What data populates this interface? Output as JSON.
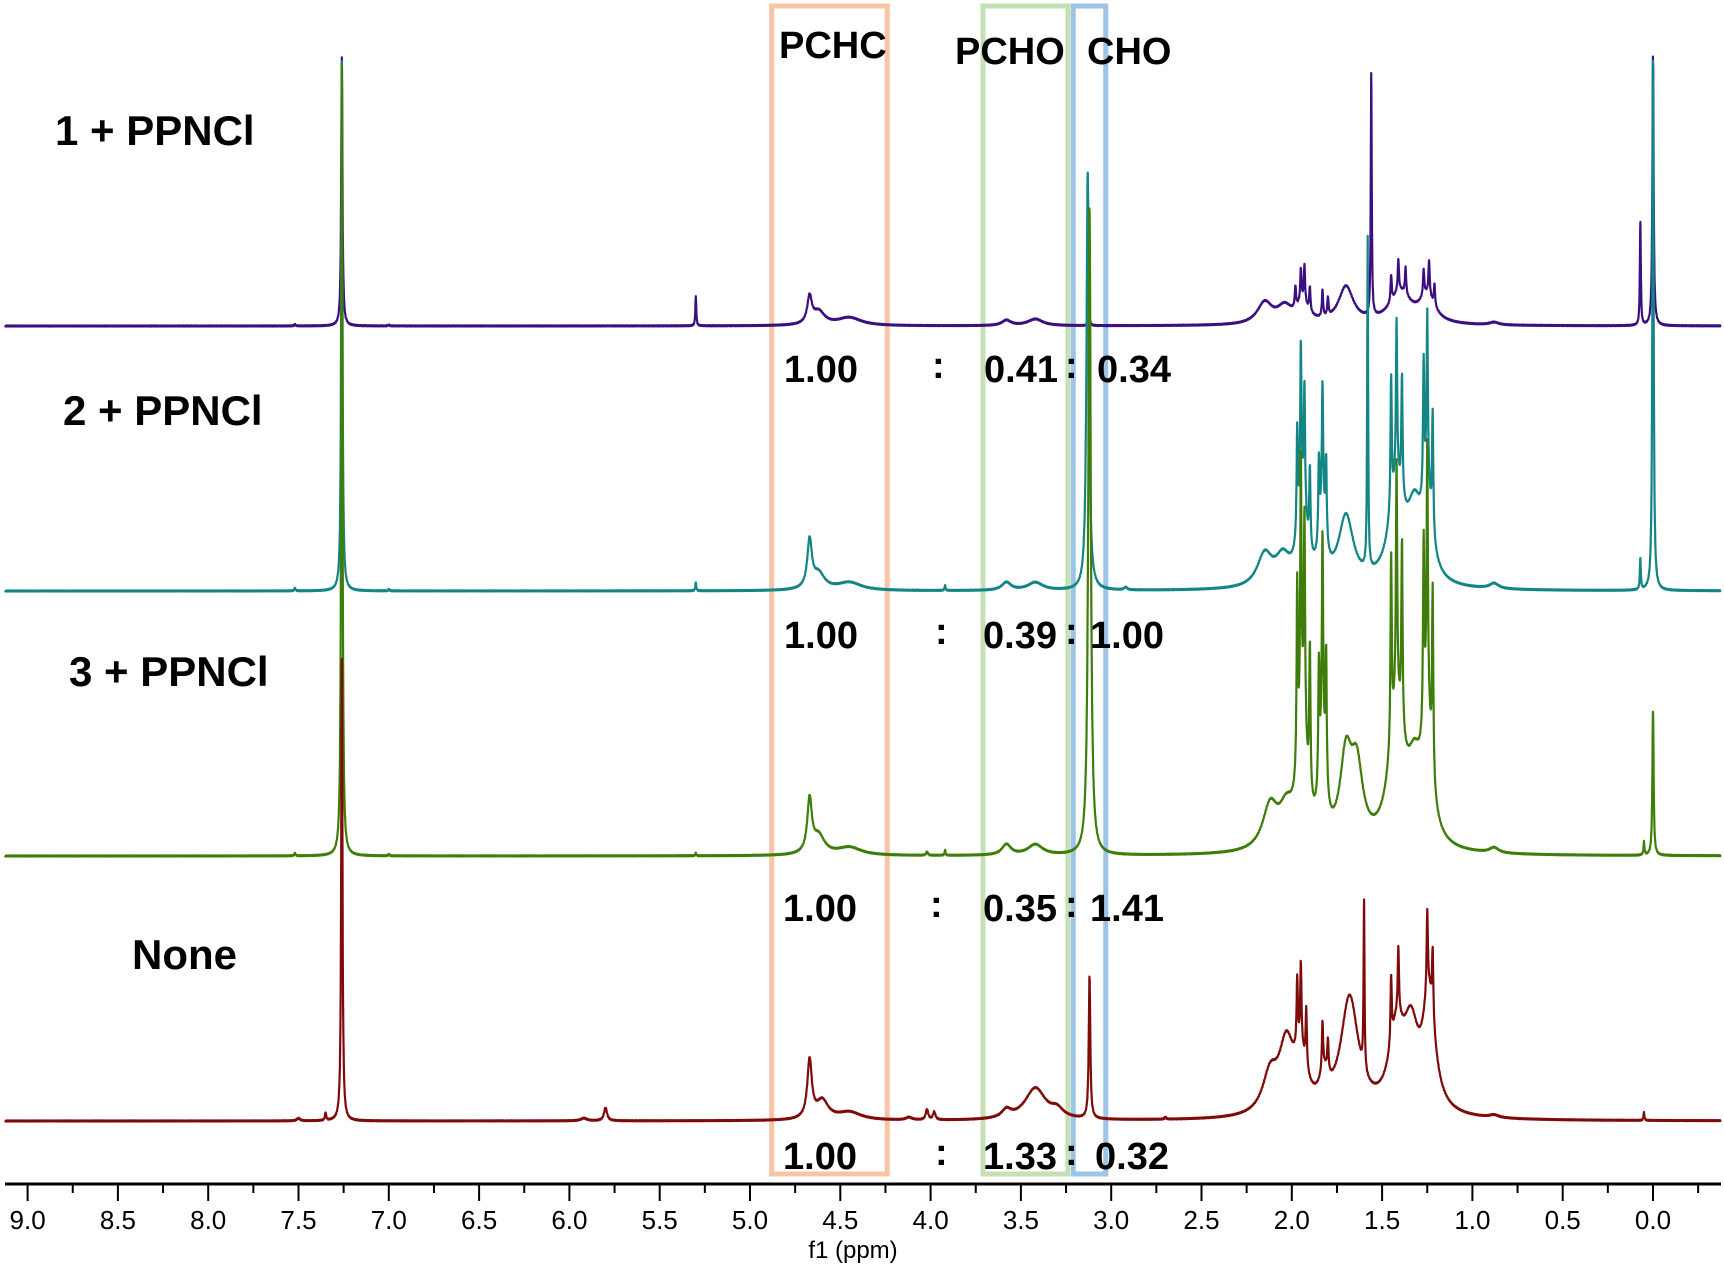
{
  "chart_data": {
    "type": "line",
    "xlabel": "f1 (ppm)",
    "xlim": [
      9.125,
      -0.377
    ],
    "x_reversed": true,
    "grid": false,
    "x_ticks": [
      "9.0",
      "8.5",
      "8.0",
      "7.5",
      "7.0",
      "6.5",
      "6.0",
      "5.5",
      "5.0",
      "4.5",
      "4.0",
      "3.5",
      "3.0",
      "2.5",
      "2.0",
      "1.5",
      "1.0",
      "0.5",
      "0.0"
    ],
    "regions": [
      {
        "label": "PCHC",
        "range_ppm": [
          4.88,
          4.24
        ],
        "color": "#f7c4a5"
      },
      {
        "label": "PCHO",
        "range_ppm": [
          3.71,
          3.24
        ],
        "color": "#c5e0b4"
      },
      {
        "label": "CHO",
        "range_ppm": [
          3.21,
          3.03
        ],
        "color": "#9dc3e6"
      }
    ],
    "integral_separator": ":",
    "spectra": [
      {
        "name": "1 + PPNCl",
        "color": "#3b0f80",
        "integrals": [
          "1.00",
          "0.41",
          "0.34"
        ],
        "peaks": [
          [
            7.26,
            1.03,
            0.004
          ],
          [
            7.52,
            0.006,
            0.004
          ],
          [
            7.0,
            0.006,
            0.003
          ],
          [
            5.3,
            0.11,
            0.003
          ],
          [
            4.67,
            0.1,
            0.015
          ],
          [
            4.62,
            0.05,
            0.04
          ],
          [
            4.45,
            0.03,
            0.08
          ],
          [
            3.58,
            0.02,
            0.03
          ],
          [
            3.42,
            0.025,
            0.05
          ],
          [
            3.12,
            0.03,
            0.005
          ],
          [
            2.15,
            0.08,
            0.05
          ],
          [
            2.04,
            0.06,
            0.05
          ],
          [
            1.98,
            0.08,
            0.004
          ],
          [
            1.95,
            0.12,
            0.004
          ],
          [
            1.93,
            0.14,
            0.004
          ],
          [
            1.9,
            0.09,
            0.004
          ],
          [
            1.94,
            0.07,
            0.04
          ],
          [
            1.83,
            0.1,
            0.004
          ],
          [
            1.8,
            0.07,
            0.004
          ],
          [
            1.7,
            0.14,
            0.05
          ],
          [
            1.56,
            0.94,
            0.003
          ],
          [
            1.45,
            0.1,
            0.004
          ],
          [
            1.41,
            0.12,
            0.004
          ],
          [
            1.37,
            0.1,
            0.004
          ],
          [
            1.4,
            0.12,
            0.07
          ],
          [
            1.27,
            0.1,
            0.004
          ],
          [
            1.24,
            0.13,
            0.004
          ],
          [
            1.21,
            0.08,
            0.004
          ],
          [
            1.25,
            0.1,
            0.05
          ],
          [
            0.88,
            0.01,
            0.03
          ],
          [
            0.07,
            0.4,
            0.003
          ],
          [
            0.0,
            1.03,
            0.004
          ]
        ]
      },
      {
        "name": "2 + PPNCl",
        "color": "#138585",
        "integrals": [
          "1.00",
          "0.39",
          "1.00"
        ],
        "peaks": [
          [
            7.26,
            2.03,
            0.004
          ],
          [
            7.52,
            0.01,
            0.004
          ],
          [
            7.0,
            0.008,
            0.003
          ],
          [
            5.3,
            0.03,
            0.003
          ],
          [
            4.67,
            0.18,
            0.015
          ],
          [
            4.62,
            0.06,
            0.04
          ],
          [
            4.45,
            0.03,
            0.08
          ],
          [
            3.92,
            0.02,
            0.003
          ],
          [
            3.58,
            0.03,
            0.03
          ],
          [
            3.42,
            0.03,
            0.05
          ],
          [
            3.13,
            1.58,
            0.008
          ],
          [
            2.92,
            0.01,
            0.01
          ],
          [
            2.15,
            0.12,
            0.05
          ],
          [
            2.05,
            0.1,
            0.05
          ],
          [
            1.97,
            0.4,
            0.004
          ],
          [
            1.95,
            0.6,
            0.004
          ],
          [
            1.93,
            0.45,
            0.004
          ],
          [
            1.9,
            0.3,
            0.004
          ],
          [
            1.94,
            0.3,
            0.03
          ],
          [
            1.85,
            0.3,
            0.004
          ],
          [
            1.83,
            0.45,
            0.004
          ],
          [
            1.81,
            0.3,
            0.004
          ],
          [
            1.83,
            0.25,
            0.02
          ],
          [
            1.7,
            0.26,
            0.05
          ],
          [
            1.58,
            1.25,
            0.003
          ],
          [
            1.45,
            0.5,
            0.004
          ],
          [
            1.42,
            0.6,
            0.004
          ],
          [
            1.39,
            0.45,
            0.004
          ],
          [
            1.42,
            0.35,
            0.05
          ],
          [
            1.32,
            0.25,
            0.05
          ],
          [
            1.27,
            0.5,
            0.004
          ],
          [
            1.25,
            0.62,
            0.004
          ],
          [
            1.22,
            0.45,
            0.004
          ],
          [
            1.25,
            0.3,
            0.03
          ],
          [
            0.88,
            0.02,
            0.03
          ],
          [
            0.07,
            0.12,
            0.003
          ],
          [
            0.0,
            2.03,
            0.004
          ]
        ]
      },
      {
        "name": "3 + PPNCl",
        "color": "#3e7d0a",
        "integrals": [
          "1.00",
          "0.35",
          "1.41"
        ],
        "peaks": [
          [
            7.26,
            3.03,
            0.004
          ],
          [
            7.52,
            0.01,
            0.004
          ],
          [
            7.0,
            0.008,
            0.003
          ],
          [
            5.3,
            0.01,
            0.003
          ],
          [
            4.67,
            0.2,
            0.015
          ],
          [
            4.62,
            0.07,
            0.04
          ],
          [
            4.45,
            0.03,
            0.08
          ],
          [
            4.02,
            0.015,
            0.005
          ],
          [
            3.92,
            0.02,
            0.003
          ],
          [
            3.58,
            0.04,
            0.03
          ],
          [
            3.42,
            0.04,
            0.05
          ],
          [
            3.12,
            2.45,
            0.008
          ],
          [
            2.12,
            0.16,
            0.05
          ],
          [
            2.03,
            0.13,
            0.05
          ],
          [
            1.97,
            0.7,
            0.004
          ],
          [
            1.95,
            1.0,
            0.004
          ],
          [
            1.93,
            0.8,
            0.004
          ],
          [
            1.9,
            0.55,
            0.004
          ],
          [
            1.94,
            0.45,
            0.03
          ],
          [
            1.85,
            0.45,
            0.004
          ],
          [
            1.83,
            0.75,
            0.004
          ],
          [
            1.81,
            0.5,
            0.004
          ],
          [
            1.83,
            0.35,
            0.02
          ],
          [
            1.7,
            0.32,
            0.04
          ],
          [
            1.64,
            0.27,
            0.04
          ],
          [
            1.45,
            0.7,
            0.004
          ],
          [
            1.42,
            0.9,
            0.004
          ],
          [
            1.39,
            0.7,
            0.004
          ],
          [
            1.42,
            0.5,
            0.05
          ],
          [
            1.32,
            0.25,
            0.05
          ],
          [
            1.27,
            0.7,
            0.004
          ],
          [
            1.25,
            0.95,
            0.004
          ],
          [
            1.22,
            0.7,
            0.004
          ],
          [
            1.25,
            0.45,
            0.03
          ],
          [
            0.88,
            0.02,
            0.03
          ],
          [
            0.05,
            0.05,
            0.003
          ],
          [
            0.0,
            0.55,
            0.004
          ]
        ]
      },
      {
        "name": "None",
        "color": "#7f0a0a",
        "integrals": [
          "1.00",
          "1.33",
          "0.32"
        ],
        "peaks": [
          [
            7.26,
            1.77,
            0.004
          ],
          [
            7.35,
            0.03,
            0.004
          ],
          [
            7.5,
            0.01,
            0.01
          ],
          [
            5.8,
            0.05,
            0.01
          ],
          [
            5.92,
            0.01,
            0.02
          ],
          [
            4.67,
            0.22,
            0.015
          ],
          [
            4.6,
            0.07,
            0.04
          ],
          [
            4.45,
            0.03,
            0.08
          ],
          [
            4.02,
            0.04,
            0.008
          ],
          [
            3.98,
            0.03,
            0.008
          ],
          [
            4.12,
            0.01,
            0.02
          ],
          [
            3.58,
            0.03,
            0.03
          ],
          [
            3.42,
            0.12,
            0.07
          ],
          [
            3.3,
            0.03,
            0.04
          ],
          [
            3.12,
            0.54,
            0.005
          ],
          [
            2.7,
            0.01,
            0.004
          ],
          [
            2.12,
            0.14,
            0.05
          ],
          [
            2.03,
            0.25,
            0.05
          ],
          [
            1.97,
            0.25,
            0.004
          ],
          [
            1.95,
            0.3,
            0.004
          ],
          [
            1.92,
            0.22,
            0.004
          ],
          [
            1.95,
            0.18,
            0.04
          ],
          [
            1.83,
            0.18,
            0.004
          ],
          [
            1.8,
            0.12,
            0.004
          ],
          [
            1.82,
            0.1,
            0.03
          ],
          [
            1.68,
            0.44,
            0.06
          ],
          [
            1.6,
            0.65,
            0.003
          ],
          [
            1.45,
            0.25,
            0.004
          ],
          [
            1.41,
            0.25,
            0.004
          ],
          [
            1.42,
            0.28,
            0.05
          ],
          [
            1.34,
            0.28,
            0.05
          ],
          [
            1.25,
            0.3,
            0.004
          ],
          [
            1.22,
            0.25,
            0.004
          ],
          [
            1.24,
            0.42,
            0.04
          ],
          [
            0.88,
            0.01,
            0.03
          ],
          [
            0.05,
            0.03,
            0.003
          ]
        ]
      }
    ]
  }
}
